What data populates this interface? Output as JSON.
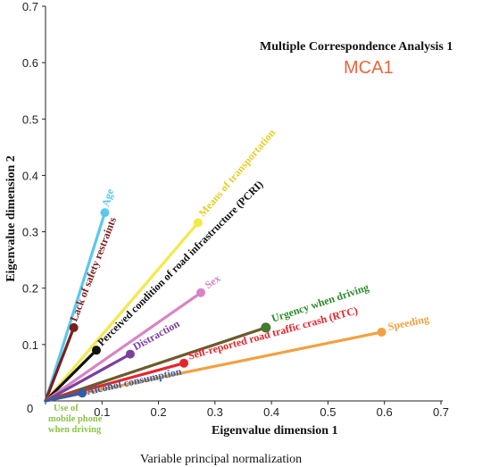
{
  "chart_data": {
    "type": "scatter",
    "title": "Multiple Correspondence Analysis 1",
    "subtitle": "MCA1",
    "xlabel": "Eigenvalue dimension 1",
    "ylabel": "Eigenvalue dimension 2",
    "footnote": "Variable principal normalization",
    "xlim": [
      0,
      0.7
    ],
    "ylim": [
      0,
      0.7
    ],
    "x_ticks": [
      "0",
      "0.1",
      "0.2",
      "0.3",
      "0.4",
      "0.5",
      "0.6",
      "0.7"
    ],
    "y_ticks": [
      "0.1",
      "0.2",
      "0.3",
      "0.4",
      "0.5",
      "0.6",
      "0.7"
    ],
    "grid": false,
    "origin_label": "0",
    "series": [
      {
        "name": "Age",
        "x": 0.105,
        "y": 0.334,
        "color": "#5bc7ec"
      },
      {
        "name": "Lack of safety restraints",
        "x": 0.05,
        "y": 0.13,
        "color": "#7b1e1e"
      },
      {
        "name": "Means of transportation",
        "x": 0.27,
        "y": 0.316,
        "color": "#f5e84a"
      },
      {
        "name": "Perceived condition of road infrastructure (PCRI)",
        "x": 0.09,
        "y": 0.09,
        "color": "#111111"
      },
      {
        "name": "Sex",
        "x": 0.275,
        "y": 0.192,
        "color": "#d884c4"
      },
      {
        "name": "Distraction",
        "x": 0.15,
        "y": 0.083,
        "color": "#7b3f9e"
      },
      {
        "name": "Urgency when driving",
        "x": 0.39,
        "y": 0.13,
        "color": "#2a8a2a"
      },
      {
        "name": "Self-reported road traffic crash (RTC)",
        "x": 0.245,
        "y": 0.067,
        "color": "#e8242b"
      },
      {
        "name": "Speeding",
        "x": 0.595,
        "y": 0.122,
        "color": "#f4a040"
      },
      {
        "name": "Alcohol consumption",
        "x": 0.065,
        "y": 0.014,
        "color": "#2f5da8"
      },
      {
        "name": "Use of mobile phone when driving",
        "x": 0.0,
        "y": 0.0,
        "color": "#8bc34a"
      }
    ],
    "line_colors": {
      "Urgency when driving": "#6b5a2a"
    }
  }
}
